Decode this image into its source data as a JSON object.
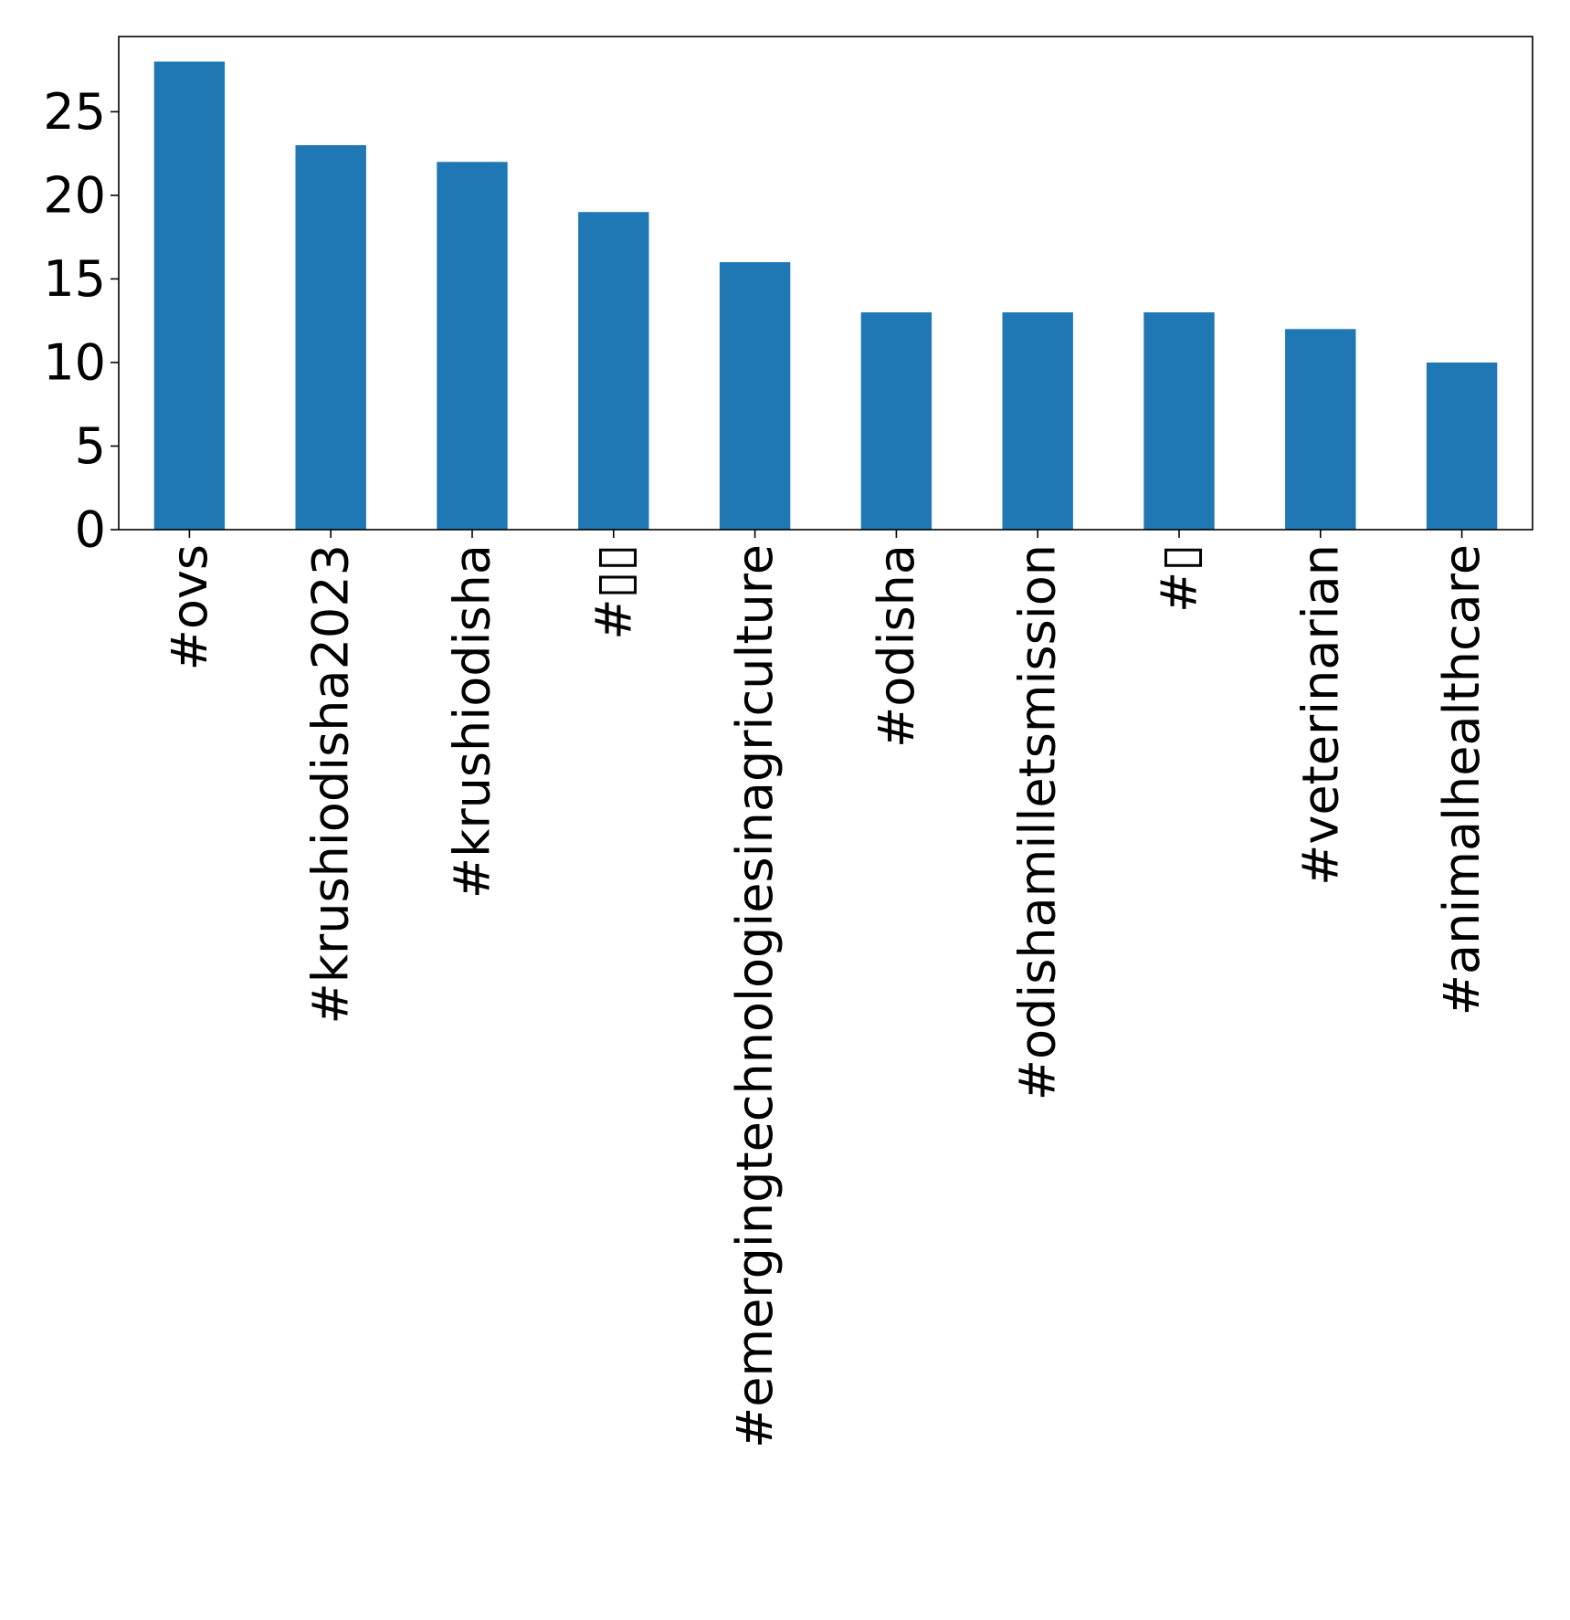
{
  "chart_data": {
    "type": "bar",
    "categories": [
      "#ovs",
      "#krushiodisha2023",
      "#krushiodisha",
      "#▯▯",
      "#emergingtechnologiesinagriculture",
      "#odisha",
      "#odishamilletsmission",
      "#▯",
      "#veterinarian",
      "#animalhealthcare"
    ],
    "values": [
      28,
      23,
      22,
      19,
      16,
      13,
      13,
      13,
      12,
      10
    ],
    "ylim": [
      0,
      29.5
    ],
    "yticks": [
      0,
      5,
      10,
      15,
      20,
      25
    ],
    "title": "",
    "xlabel": "",
    "ylabel": "",
    "grid": false,
    "bar_color": "#1f77b4"
  }
}
